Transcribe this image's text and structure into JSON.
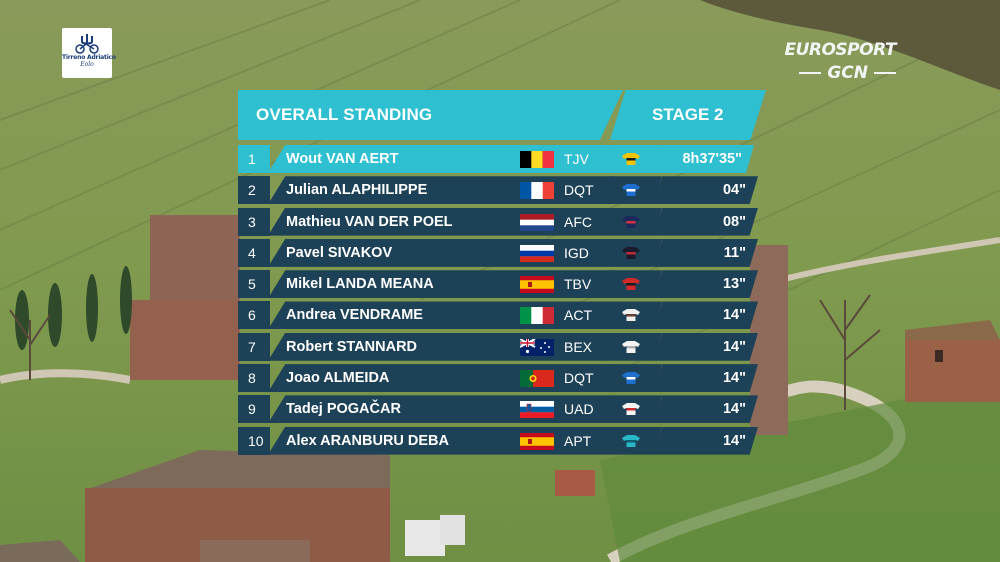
{
  "race_logo": {
    "line1": "Tirreno Adriatico",
    "line2": "Eolo"
  },
  "broadcaster": {
    "primary": "EUROSPORT",
    "secondary": "GCN"
  },
  "standings": {
    "title": "OVERALL STANDING",
    "stage": "STAGE 2",
    "rows": [
      {
        "pos": "1",
        "name": "Wout VAN AERT",
        "flag": "belgium-flag",
        "team": "TJV",
        "time": "8h37'35\"",
        "jersey": "yellow-black"
      },
      {
        "pos": "2",
        "name": "Julian ALAPHILIPPE",
        "flag": "france-flag",
        "team": "DQT",
        "time": "04\"",
        "jersey": "blue"
      },
      {
        "pos": "3",
        "name": "Mathieu VAN DER POEL",
        "flag": "netherlands-flag",
        "team": "AFC",
        "time": "08\"",
        "jersey": "navy-red"
      },
      {
        "pos": "4",
        "name": "Pavel SIVAKOV",
        "flag": "russia-flag",
        "team": "IGD",
        "time": "11\"",
        "jersey": "black-red"
      },
      {
        "pos": "5",
        "name": "Mikel LANDA MEANA",
        "flag": "spain-flag",
        "team": "TBV",
        "time": "13\"",
        "jersey": "red"
      },
      {
        "pos": "6",
        "name": "Andrea VENDRAME",
        "flag": "italy-flag",
        "team": "ACT",
        "time": "14\"",
        "jersey": "white-brown"
      },
      {
        "pos": "7",
        "name": "Robert STANNARD",
        "flag": "australia-flag",
        "team": "BEX",
        "time": "14\"",
        "jersey": "white"
      },
      {
        "pos": "8",
        "name": "Joao ALMEIDA",
        "flag": "portugal-flag",
        "team": "DQT",
        "time": "14\"",
        "jersey": "blue"
      },
      {
        "pos": "9",
        "name": "Tadej POGAČAR",
        "flag": "slovenia-flag",
        "team": "UAD",
        "time": "14\"",
        "jersey": "white-red"
      },
      {
        "pos": "10",
        "name": "Alex ARANBURU DEBA",
        "flag": "spain-flag",
        "team": "APT",
        "time": "14\"",
        "jersey": "teal"
      }
    ]
  }
}
